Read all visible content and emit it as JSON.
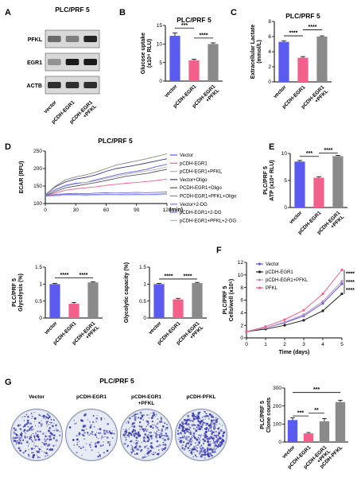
{
  "panels": {
    "A": {
      "letter": "A",
      "title": "PLC/PRF 5",
      "proteins": [
        "PFKL",
        "EGR1",
        "ACTB"
      ],
      "lanes": [
        "vector",
        "pCDH-EGR1",
        "pCDH-EGR1\n+PFKL"
      ]
    },
    "B": {
      "letter": "B",
      "title": "PLC/PRF 5",
      "sig": [
        "***",
        "****"
      ]
    },
    "C": {
      "letter": "C",
      "title": "PLC/PRF 5",
      "sig": [
        "****",
        "****"
      ]
    },
    "D": {
      "letter": "D",
      "title": "PLC/PRF 5",
      "sig_glyco": [
        "****",
        "****"
      ],
      "sig_cap": [
        "****",
        "****"
      ]
    },
    "E": {
      "letter": "E",
      "sig": [
        "***",
        "****"
      ]
    },
    "F": {
      "letter": "F",
      "sig": [
        "****",
        "****",
        "****"
      ]
    },
    "G": {
      "letter": "G",
      "title": "PLC/PRF 5",
      "plates": [
        {
          "label": "Vector",
          "density": 0.5
        },
        {
          "label": "pCDH-EGR1",
          "density": 0.2
        },
        {
          "label": "pCDH-EGR1\n+PFKL",
          "density": 0.55
        },
        {
          "label": "pCDH-PFKL",
          "density": 1.0
        }
      ],
      "sig": [
        "***",
        "**",
        "***"
      ]
    }
  },
  "chart_data": [
    {
      "id": "B",
      "type": "bar",
      "title": "PLC/PRF 5",
      "ylabel": "Glucose uptake\n(x10⁴ RLU)",
      "categories": [
        "vector",
        "pCDH-EGR1",
        "pCDH-EGR1\n+PFKL"
      ],
      "values": [
        12.2,
        5.6,
        10.0
      ],
      "errors": [
        0.8,
        0.3,
        0.3
      ],
      "colors": [
        "#5b5bf2",
        "#f4608c",
        "#8a8a8a"
      ],
      "ylim": [
        0,
        15
      ],
      "yticks": [
        0,
        5,
        10,
        15
      ]
    },
    {
      "id": "C",
      "type": "bar",
      "title": "PLC/PRF 5",
      "ylabel": "Extracellular Lactate\n(mmol/L)",
      "categories": [
        "vector",
        "pCDH-EGR1",
        "pCDH-EGR1\n+PFKL"
      ],
      "values": [
        5.3,
        3.2,
        6.0
      ],
      "errors": [
        0.15,
        0.15,
        0.1
      ],
      "colors": [
        "#5b5bf2",
        "#f4608c",
        "#8a8a8a"
      ],
      "ylim": [
        0,
        8
      ],
      "yticks": [
        0,
        2,
        4,
        6,
        8
      ]
    },
    {
      "id": "D-ECAR",
      "type": "line",
      "ylabel": "ECAR (RFU)",
      "xlabel": "(min)",
      "xlim": [
        0,
        120
      ],
      "ylim": [
        100,
        250
      ],
      "xticks": [
        0,
        30,
        60,
        90,
        120
      ],
      "yticks": [
        100,
        150,
        200,
        250
      ],
      "x": [
        0,
        10,
        20,
        30,
        40,
        50,
        60,
        70,
        80,
        90,
        100,
        110,
        120
      ],
      "series": [
        {
          "name": "Vector",
          "color": "#5b5bf2",
          "values": [
            124,
            140,
            152,
            158,
            160,
            168,
            175,
            182,
            188,
            192,
            198,
            206,
            212
          ]
        },
        {
          "name": "pCDH-EGR1",
          "color": "#f4608c",
          "values": [
            122,
            130,
            138,
            142,
            145,
            148,
            152,
            155,
            158,
            160,
            163,
            166,
            170
          ]
        },
        {
          "name": "pCDH-EGR1+PFKL",
          "color": "#b4b4b4",
          "values": [
            124,
            138,
            150,
            156,
            160,
            165,
            172,
            178,
            184,
            188,
            193,
            198,
            205
          ]
        },
        {
          "name": "Vector+Oligo",
          "color": "#3a3a8a",
          "values": [
            125,
            148,
            162,
            170,
            175,
            182,
            192,
            200,
            205,
            210,
            216,
            222,
            228
          ]
        },
        {
          "name": "PCDH-EGR1+Oligo",
          "color": "#5a5a5a",
          "values": [
            123,
            134,
            145,
            150,
            155,
            160,
            166,
            172,
            178,
            182,
            186,
            192,
            198
          ]
        },
        {
          "name": "PCDH-EGR1+PFKL+Oligo",
          "color": "#888888",
          "values": [
            125,
            150,
            168,
            176,
            182,
            190,
            200,
            210,
            216,
            222,
            228,
            235,
            242
          ]
        },
        {
          "name": "Vector+2-DG",
          "color": "#7b6fd1",
          "values": [
            122,
            126,
            128,
            129,
            128,
            130,
            131,
            130,
            131,
            132,
            131,
            132,
            133
          ]
        },
        {
          "name": "pCDH-EGR1+2-DG",
          "color": "#6e6ef0",
          "values": [
            121,
            124,
            126,
            126,
            125,
            126,
            127,
            126,
            127,
            127,
            126,
            127,
            128
          ]
        },
        {
          "name": "pCDH-EGR1+PFKL+2-DG",
          "color": "#a8b4ee",
          "values": [
            120,
            122,
            124,
            124,
            123,
            124,
            125,
            125,
            124,
            125,
            125,
            125,
            126
          ]
        }
      ]
    },
    {
      "id": "D-glycolysis",
      "type": "bar",
      "ylabel": "PLC/PRF 5\nGlycolysis (%)",
      "categories": [
        "vector",
        "pCDH-EGR1",
        "pCDH-EGR1\n+PFKL"
      ],
      "values": [
        1.0,
        0.42,
        1.05
      ],
      "errors": [
        0.02,
        0.04,
        0.02
      ],
      "colors": [
        "#5b5bf2",
        "#f4608c",
        "#8a8a8a"
      ],
      "ylim": [
        0,
        1.5
      ],
      "yticks": [
        0,
        0.5,
        1.0,
        1.5
      ]
    },
    {
      "id": "D-glycolytic-capacity",
      "type": "bar",
      "ylabel": "Glycolytic capacity (%)",
      "categories": [
        "vector",
        "pCDH-EGR1",
        "pCDH-EGR1\n+PFKL"
      ],
      "values": [
        1.0,
        0.55,
        1.03
      ],
      "errors": [
        0.02,
        0.03,
        0.02
      ],
      "colors": [
        "#5b5bf2",
        "#f4608c",
        "#8a8a8a"
      ],
      "ylim": [
        0,
        1.5
      ],
      "yticks": [
        0,
        0.5,
        1.0,
        1.5
      ]
    },
    {
      "id": "E",
      "type": "bar",
      "ylabel": "PLC/PRF 5\nATP (x10⁴ RLU)",
      "categories": [
        "vector",
        "pCDH-EGR1",
        "pCDH-EGR1\n+PFKL"
      ],
      "values": [
        8.5,
        5.5,
        9.5
      ],
      "errors": [
        0.2,
        0.2,
        0.15
      ],
      "colors": [
        "#5b5bf2",
        "#f4608c",
        "#8a8a8a"
      ],
      "ylim": [
        0,
        10
      ],
      "yticks": [
        0,
        5,
        10
      ]
    },
    {
      "id": "F",
      "type": "line",
      "ylabel": "PLC/PRF 5\nCells/well (x10⁵)",
      "xlabel": "Time (days)",
      "x": [
        0,
        1,
        2,
        3,
        4,
        5
      ],
      "xlim": [
        0,
        5
      ],
      "ylim": [
        0,
        12
      ],
      "xticks": [
        0,
        1,
        2,
        3,
        4,
        5
      ],
      "yticks": [
        0,
        2,
        4,
        6,
        8,
        10,
        12
      ],
      "series": [
        {
          "name": "Vector",
          "color": "#5b5bf2",
          "values": [
            1.0,
            1.6,
            2.4,
            3.5,
            5.5,
            8.6
          ]
        },
        {
          "name": "pCDH-EGR1",
          "color": "#222222",
          "values": [
            1.0,
            1.4,
            2.0,
            2.8,
            4.3,
            7.0
          ]
        },
        {
          "name": "pCDH-EGR1+PFKL",
          "color": "#c090c0",
          "values": [
            1.0,
            1.6,
            2.5,
            3.7,
            5.8,
            9.0
          ]
        },
        {
          "name": "PFKL",
          "color": "#f4608c",
          "values": [
            1.0,
            1.8,
            2.9,
            4.4,
            7.0,
            10.8
          ]
        }
      ]
    },
    {
      "id": "G",
      "type": "bar",
      "ylabel": "PLC/PRF 5\nClone counts",
      "categories": [
        "vector",
        "pCDH-EGR1",
        "pCDH-EGR1\n+PFKL",
        "pCDH-PFKL"
      ],
      "values": [
        122,
        48,
        115,
        222
      ],
      "errors": [
        12,
        5,
        15,
        10
      ],
      "colors": [
        "#5b5bf2",
        "#f4608c",
        "#8a8a8a",
        "#8a8a8a"
      ],
      "ylim": [
        0,
        300
      ],
      "yticks": [
        0,
        100,
        200,
        300
      ]
    }
  ]
}
